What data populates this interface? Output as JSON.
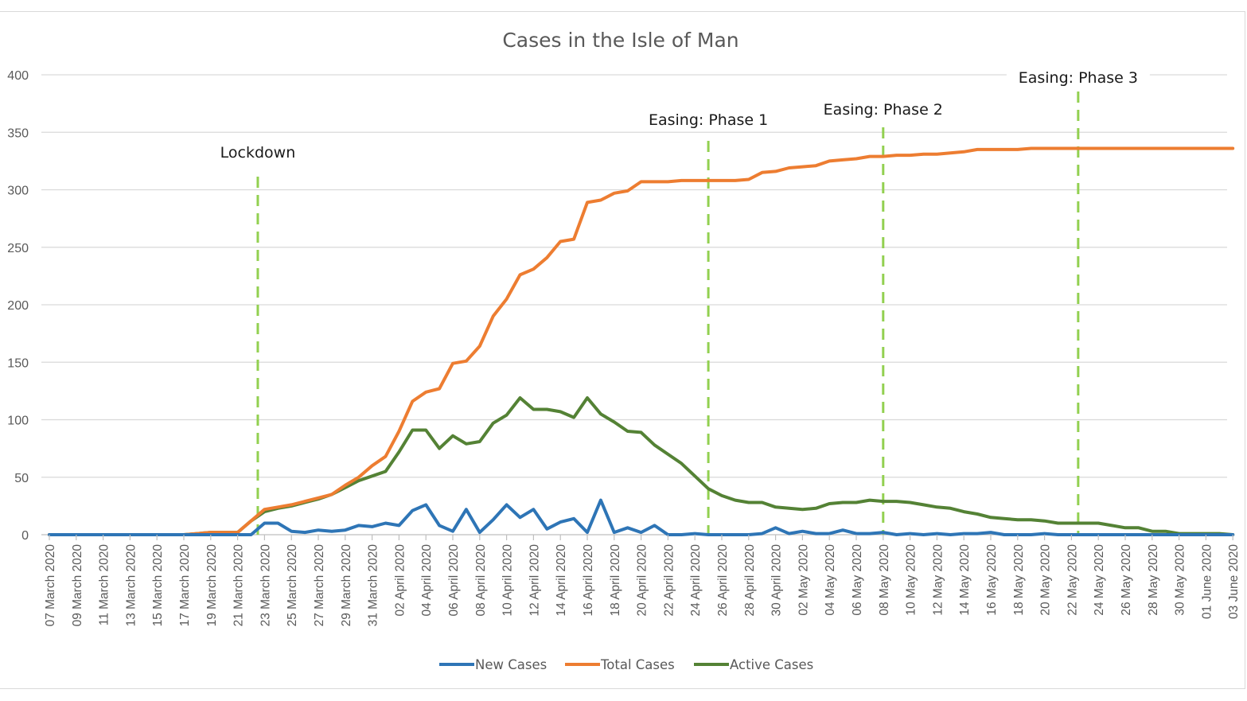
{
  "chart_data": {
    "type": "line",
    "title": "Cases in the Isle of Man",
    "xlabel": "",
    "ylabel": "",
    "ylim": [
      0,
      400
    ],
    "yticks": [
      0,
      50,
      100,
      150,
      200,
      250,
      300,
      350,
      400
    ],
    "grid": true,
    "legend_position": "bottom",
    "x_tick_labels": [
      "07 March 2020",
      "09 March 2020",
      "11 March 2020",
      "13 March 2020",
      "15 March 2020",
      "17 March 2020",
      "19 March 2020",
      "21 March 2020",
      "23 March 2020",
      "25 March 2020",
      "27 March 2020",
      "29 March 2020",
      "31 March 2020",
      "02 April 2020",
      "04 April 2020",
      "06 April 2020",
      "08 April 2020",
      "10 April 2020",
      "12 April 2020",
      "14 April 2020",
      "16 April 2020",
      "18 April 2020",
      "20 April 2020",
      "22 April 2020",
      "24 April 2020",
      "26 April 2020",
      "28 April 2020",
      "30 April 2020",
      "02 May 2020",
      "04 May 2020",
      "06 May 2020",
      "08 May 2020",
      "10 May 2020",
      "12 May 2020",
      "14 May 2020",
      "16 May 2020",
      "18 May 2020",
      "20 May 2020",
      "22 May 2020",
      "24 May 2020",
      "26 May 2020",
      "28 May 2020",
      "30 May 2020",
      "01 June 2020",
      "03 June 2020"
    ],
    "annotations": [
      {
        "label": "Lockdown",
        "day_index": 15.5
      },
      {
        "label": "Easing: Phase 1",
        "day_index": 49
      },
      {
        "label": "Easing: Phase 2",
        "day_index": 62
      },
      {
        "label": "Easing: Phase 3",
        "day_index": 76.5
      }
    ],
    "series": [
      {
        "name": "New Cases",
        "color": "#2e75b6",
        "values": [
          0,
          0,
          0,
          0,
          0,
          0,
          0,
          0,
          0,
          0,
          0,
          0,
          0,
          0,
          0,
          0,
          10,
          10,
          3,
          2,
          4,
          3,
          4,
          8,
          7,
          10,
          8,
          21,
          26,
          8,
          3,
          22,
          2,
          13,
          26,
          15,
          22,
          5,
          11,
          14,
          2,
          30,
          2,
          6,
          2,
          8,
          0,
          0,
          1,
          0,
          0,
          0,
          0,
          1,
          6,
          1,
          3,
          1,
          1,
          4,
          1,
          1,
          2,
          0,
          1,
          0,
          1,
          0,
          1,
          1,
          2,
          0,
          0,
          0,
          1,
          0,
          0,
          0,
          0,
          0,
          0,
          0,
          0,
          0,
          0,
          0,
          0,
          0,
          0
        ]
      },
      {
        "name": "Total Cases",
        "color": "#ed7d31",
        "values": [
          0,
          0,
          0,
          0,
          0,
          0,
          0,
          0,
          0,
          0,
          0,
          1,
          2,
          2,
          2,
          12,
          22,
          24,
          26,
          29,
          32,
          35,
          43,
          50,
          60,
          68,
          90,
          116,
          124,
          127,
          149,
          151,
          164,
          190,
          205,
          226,
          231,
          241,
          255,
          257,
          289,
          291,
          297,
          299,
          307,
          307,
          307,
          308,
          308,
          308,
          308,
          308,
          309,
          315,
          316,
          319,
          320,
          321,
          325,
          326,
          327,
          329,
          329,
          330,
          330,
          331,
          331,
          332,
          333,
          335,
          335,
          335,
          335,
          336,
          336,
          336,
          336,
          336,
          336,
          336,
          336,
          336,
          336,
          336,
          336,
          336,
          336,
          336,
          336
        ]
      },
      {
        "name": "Active Cases",
        "color": "#548235",
        "values": [
          0,
          0,
          0,
          0,
          0,
          0,
          0,
          0,
          0,
          0,
          0,
          1,
          2,
          2,
          2,
          12,
          20,
          23,
          25,
          28,
          31,
          35,
          41,
          47,
          51,
          55,
          72,
          91,
          91,
          75,
          86,
          79,
          81,
          97,
          104,
          119,
          109,
          109,
          107,
          102,
          119,
          105,
          98,
          90,
          89,
          78,
          70,
          62,
          51,
          40,
          34,
          30,
          28,
          28,
          24,
          23,
          22,
          23,
          27,
          28,
          28,
          30,
          29,
          29,
          28,
          26,
          24,
          23,
          20,
          18,
          15,
          14,
          13,
          13,
          12,
          10,
          10,
          10,
          10,
          8,
          6,
          6,
          3,
          3,
          1,
          1,
          1,
          1,
          0
        ]
      }
    ]
  }
}
